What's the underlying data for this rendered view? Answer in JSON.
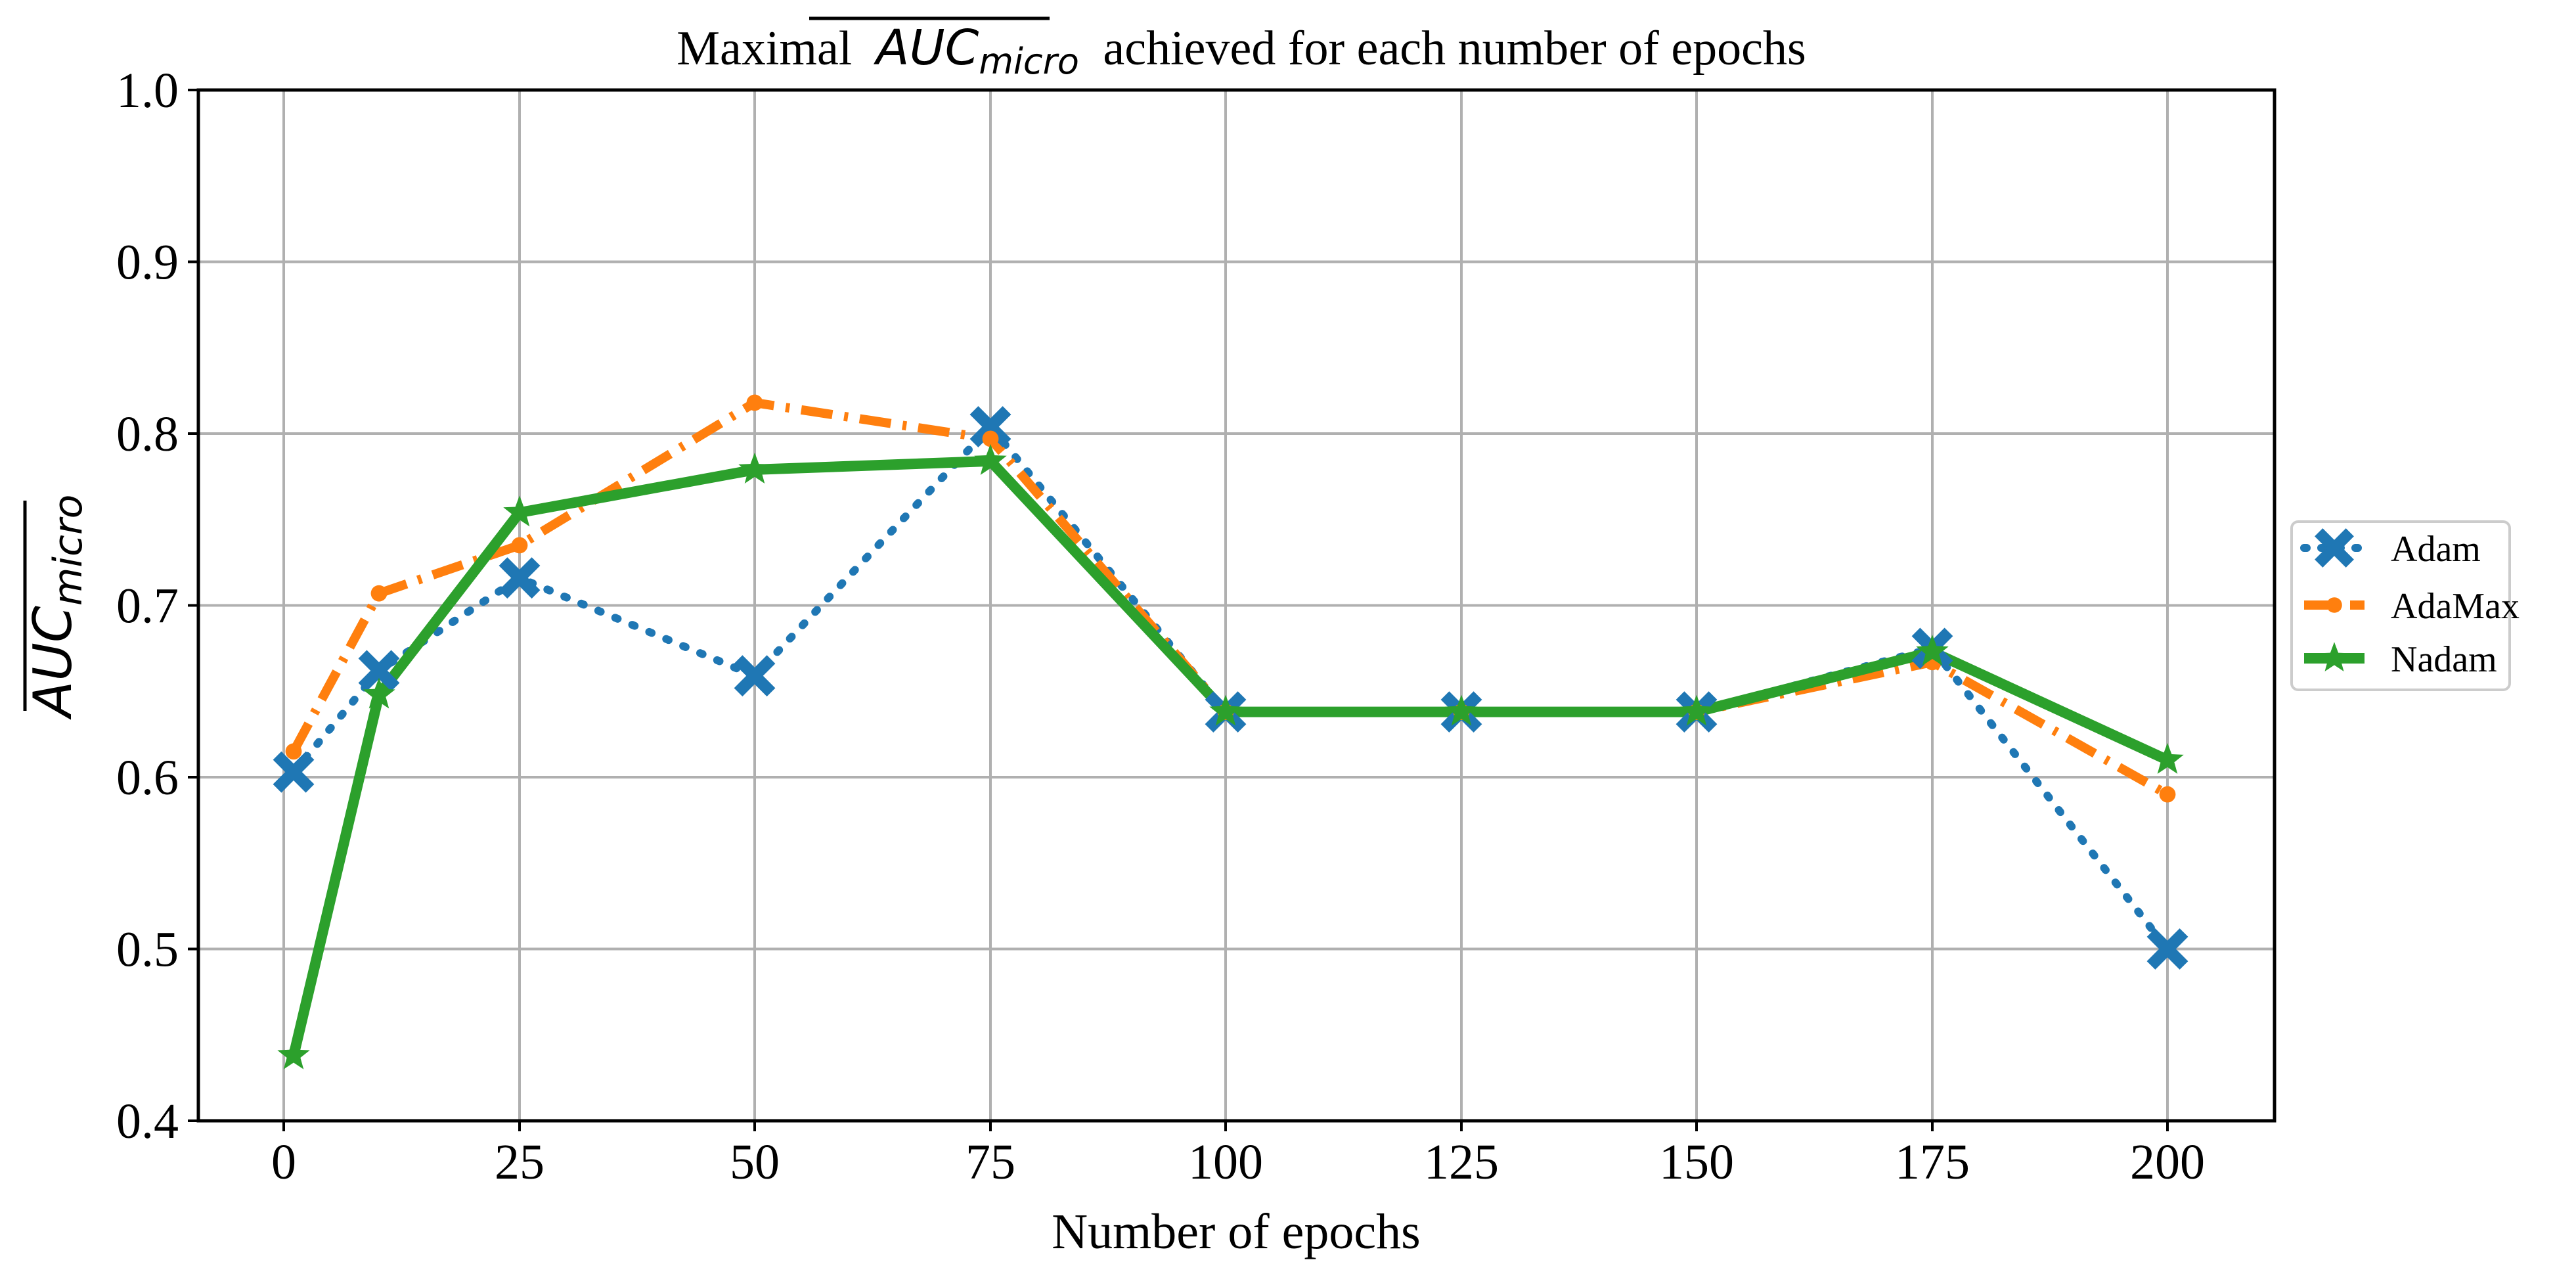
{
  "chart_data": {
    "type": "line",
    "title_prefix": "Maximal",
    "title_metric_base": "AUC",
    "title_metric_sub": "micro",
    "title_suffix": "achieved for each number of epochs",
    "xlabel": "Number of epochs",
    "ylabel_base": "AUC",
    "ylabel_sub": "micro",
    "x_ticks": [
      0,
      25,
      50,
      75,
      100,
      125,
      150,
      175,
      200
    ],
    "x_tick_labels": [
      "0",
      "25",
      "50",
      "75",
      "100",
      "125",
      "150",
      "175",
      "200"
    ],
    "y_ticks": [
      0.4,
      0.5,
      0.6,
      0.7,
      0.8,
      0.9,
      1.0
    ],
    "y_tick_labels": [
      "0.4",
      "0.5",
      "0.6",
      "0.7",
      "0.8",
      "0.9",
      "1.0"
    ],
    "xlim": [
      -9.6,
      210
    ],
    "ylim": [
      0.4,
      1.0
    ],
    "grid": true,
    "legend_position": "center-right, outside",
    "x": [
      1,
      10,
      25,
      50,
      75,
      100,
      125,
      150,
      175,
      200
    ],
    "series": [
      {
        "name": "Adam",
        "color": "#1f77b4",
        "line": "dotted",
        "marker": "X",
        "values": [
          0.603,
          0.662,
          0.716,
          0.659,
          0.804,
          0.638,
          0.638,
          0.638,
          0.675,
          0.5
        ]
      },
      {
        "name": "AdaMax",
        "color": "#ff7f0e",
        "line": "dashdot",
        "marker": "circle",
        "values": [
          0.615,
          0.707,
          0.735,
          0.818,
          0.797,
          0.638,
          0.638,
          0.638,
          0.667,
          0.59
        ]
      },
      {
        "name": "Nadam",
        "color": "#2ca02c",
        "line": "solid",
        "marker": "star",
        "values": [
          0.438,
          0.648,
          0.754,
          0.779,
          0.784,
          0.638,
          0.638,
          0.638,
          0.673,
          0.61
        ]
      }
    ]
  }
}
